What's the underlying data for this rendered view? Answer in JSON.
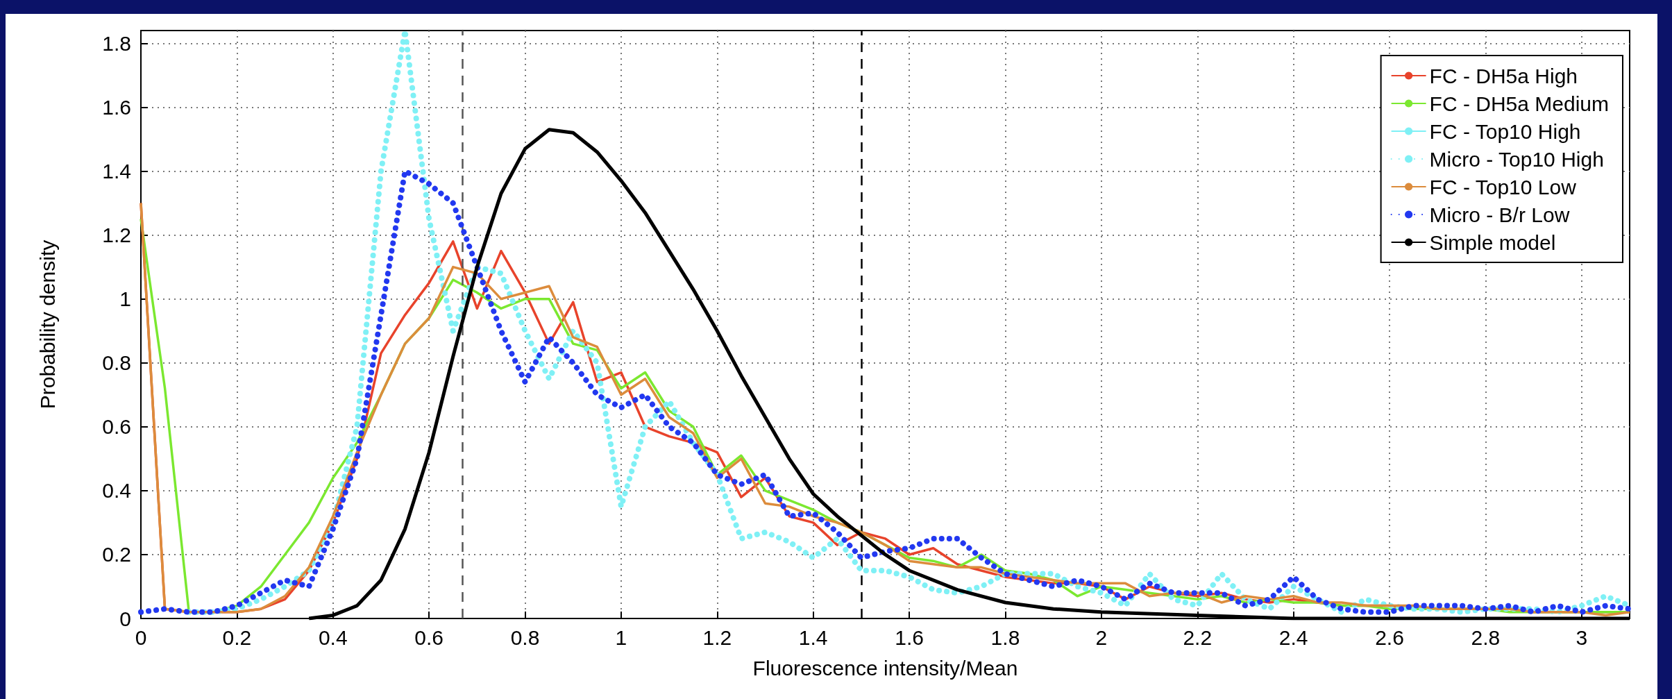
{
  "chart_data": {
    "type": "line",
    "xlabel": "Fluorescence intensity/Mean",
    "ylabel": "Probability density",
    "x": [
      0,
      0.05,
      0.1,
      0.15,
      0.2,
      0.25,
      0.3,
      0.35,
      0.4,
      0.45,
      0.5,
      0.55,
      0.6,
      0.65,
      0.7,
      0.75,
      0.8,
      0.85,
      0.9,
      0.95,
      1,
      1.05,
      1.1,
      1.15,
      1.2,
      1.25,
      1.3,
      1.35,
      1.4,
      1.45,
      1.5,
      1.55,
      1.6,
      1.65,
      1.7,
      1.75,
      1.8,
      1.85,
      1.9,
      1.95,
      2,
      2.05,
      2.1,
      2.15,
      2.2,
      2.25,
      2.3,
      2.35,
      2.4,
      2.45,
      2.5,
      2.55,
      2.6,
      2.65,
      2.7,
      2.75,
      2.8,
      2.85,
      2.9,
      2.95,
      3,
      3.05,
      3.1
    ],
    "series": [
      {
        "name": "FC - DH5a High",
        "color": "#e8432b",
        "line_style": "solid",
        "values": [
          1.3,
          0.03,
          0.02,
          0.02,
          0.02,
          0.03,
          0.06,
          0.15,
          0.3,
          0.5,
          0.83,
          0.95,
          1.05,
          1.18,
          0.97,
          1.15,
          1.02,
          0.86,
          0.99,
          0.74,
          0.77,
          0.6,
          0.57,
          0.55,
          0.52,
          0.38,
          0.44,
          0.32,
          0.3,
          0.23,
          0.27,
          0.25,
          0.2,
          0.22,
          0.17,
          0.15,
          0.13,
          0.12,
          0.11,
          0.11,
          0.1,
          0.06,
          0.1,
          0.08,
          0.07,
          0.08,
          0.06,
          0.05,
          0.06,
          0.05,
          0.04,
          0.04,
          0.04,
          0.03,
          0.03,
          0.03,
          0.03,
          0.03,
          0.02,
          0.02,
          0.02,
          0.02,
          0.02
        ]
      },
      {
        "name": "FC - DH5a Medium",
        "color": "#7be830",
        "line_style": "solid",
        "values": [
          1.25,
          0.72,
          0.02,
          0.02,
          0.04,
          0.1,
          0.2,
          0.3,
          0.44,
          0.55,
          0.7,
          0.86,
          0.94,
          1.06,
          1.02,
          0.97,
          1.0,
          1.0,
          0.86,
          0.84,
          0.72,
          0.77,
          0.65,
          0.6,
          0.45,
          0.51,
          0.4,
          0.37,
          0.34,
          0.3,
          0.27,
          0.23,
          0.19,
          0.18,
          0.16,
          0.2,
          0.15,
          0.14,
          0.12,
          0.07,
          0.1,
          0.09,
          0.08,
          0.07,
          0.06,
          0.07,
          0.05,
          0.06,
          0.05,
          0.05,
          0.04,
          0.04,
          0.03,
          0.03,
          0.03,
          0.03,
          0.03,
          0.02,
          0.02,
          0.02,
          0.02,
          0.02,
          0.02
        ]
      },
      {
        "name": "FC - Top10 High",
        "color": "#7ff0f5",
        "line_style": "solid",
        "values": [
          null,
          null,
          null,
          null,
          null,
          null,
          null,
          null,
          null,
          null,
          null,
          null,
          null,
          null,
          null,
          null,
          null,
          null,
          null,
          null,
          null,
          null,
          null,
          null,
          null,
          null,
          null,
          null,
          null,
          null,
          null,
          null,
          null,
          null,
          null,
          null,
          null,
          null,
          null,
          null,
          null,
          null,
          null,
          null,
          null,
          null,
          null,
          null,
          null,
          null,
          null,
          null,
          null,
          null,
          null,
          null,
          null,
          null,
          null,
          null,
          null,
          null,
          null
        ]
      },
      {
        "name": "Micro - Top10 High",
        "color": "#7ff0f5",
        "line_style": "dotted",
        "values": [
          null,
          null,
          0.02,
          0.02,
          0.03,
          0.06,
          0.1,
          0.15,
          0.3,
          0.6,
          1.4,
          1.84,
          1.25,
          0.9,
          1.1,
          1.08,
          0.9,
          0.75,
          0.9,
          0.8,
          0.35,
          0.6,
          0.68,
          0.55,
          0.45,
          0.25,
          0.27,
          0.24,
          0.19,
          0.25,
          0.15,
          0.15,
          0.13,
          0.09,
          0.08,
          0.1,
          0.14,
          0.14,
          0.14,
          0.1,
          0.08,
          0.04,
          0.14,
          0.06,
          0.04,
          0.14,
          0.06,
          0.03,
          0.1,
          0.06,
          0.02,
          0.06,
          0.04,
          0.03,
          0.03,
          0.02,
          0.03,
          0.03,
          0.03,
          0.02,
          0.04,
          0.07,
          0.04
        ]
      },
      {
        "name": "FC - Top10 Low",
        "color": "#dc8c3c",
        "line_style": "solid",
        "values": [
          1.3,
          0.03,
          0.02,
          0.02,
          0.02,
          0.03,
          0.07,
          0.16,
          0.32,
          0.52,
          0.7,
          0.86,
          0.94,
          1.1,
          1.08,
          1.0,
          1.02,
          1.04,
          0.88,
          0.85,
          0.7,
          0.75,
          0.63,
          0.58,
          0.44,
          0.5,
          0.36,
          0.35,
          0.32,
          0.3,
          0.27,
          0.23,
          0.18,
          0.17,
          0.16,
          0.16,
          0.14,
          0.13,
          0.12,
          0.11,
          0.11,
          0.11,
          0.07,
          0.08,
          0.08,
          0.05,
          0.07,
          0.06,
          0.07,
          0.05,
          0.05,
          0.04,
          0.04,
          0.04,
          0.03,
          0.03,
          0.03,
          0.03,
          0.02,
          0.02,
          0.02,
          0.01,
          0.02
        ]
      },
      {
        "name": "Micro - B/r Low",
        "color": "#2238f0",
        "line_style": "dotted",
        "values": [
          0.02,
          0.03,
          0.02,
          0.02,
          0.04,
          0.08,
          0.12,
          0.1,
          0.28,
          0.5,
          0.95,
          1.4,
          1.36,
          1.3,
          1.1,
          0.9,
          0.74,
          0.88,
          0.8,
          0.7,
          0.66,
          0.7,
          0.6,
          0.55,
          0.45,
          0.42,
          0.45,
          0.32,
          0.33,
          0.27,
          0.19,
          0.21,
          0.22,
          0.25,
          0.25,
          0.19,
          0.14,
          0.12,
          0.1,
          0.12,
          0.1,
          0.06,
          0.11,
          0.08,
          0.08,
          0.08,
          0.04,
          0.06,
          0.13,
          0.06,
          0.03,
          0.02,
          0.02,
          0.04,
          0.04,
          0.04,
          0.03,
          0.04,
          0.02,
          0.04,
          0.02,
          0.04,
          0.03
        ]
      },
      {
        "name": "Simple model",
        "color": "#000000",
        "line_style": "solid",
        "x": [
          0.35,
          0.4,
          0.45,
          0.5,
          0.55,
          0.6,
          0.65,
          0.7,
          0.75,
          0.8,
          0.85,
          0.9,
          0.95,
          1,
          1.05,
          1.1,
          1.15,
          1.2,
          1.25,
          1.3,
          1.35,
          1.4,
          1.45,
          1.5,
          1.55,
          1.6,
          1.7,
          1.8,
          1.9,
          2,
          2.2,
          2.4,
          3.1
        ],
        "values": [
          0,
          0.01,
          0.04,
          0.12,
          0.28,
          0.52,
          0.82,
          1.1,
          1.33,
          1.47,
          1.53,
          1.52,
          1.46,
          1.37,
          1.27,
          1.15,
          1.03,
          0.9,
          0.76,
          0.63,
          0.5,
          0.39,
          0.32,
          0.26,
          0.2,
          0.15,
          0.09,
          0.05,
          0.03,
          0.02,
          0.01,
          0,
          0
        ]
      }
    ],
    "xlim": [
      0,
      3.1
    ],
    "xticks": [
      0,
      0.2,
      0.4,
      0.6,
      0.8,
      1,
      1.2,
      1.4,
      1.6,
      1.8,
      2,
      2.2,
      2.4,
      2.6,
      2.8,
      3
    ],
    "ylim": [
      0,
      1.84
    ],
    "yticks": [
      0,
      0.2,
      0.4,
      0.6,
      0.8,
      1,
      1.2,
      1.4,
      1.6,
      1.8
    ],
    "ref_lines": [
      {
        "axis": "x",
        "value": 0.667,
        "color": "#555555",
        "line_style": "dashed"
      },
      {
        "axis": "x",
        "value": 1.5,
        "color": "#000000",
        "line_style": "dashed"
      }
    ],
    "grid": true,
    "legend": "top right",
    "marker": "none"
  }
}
